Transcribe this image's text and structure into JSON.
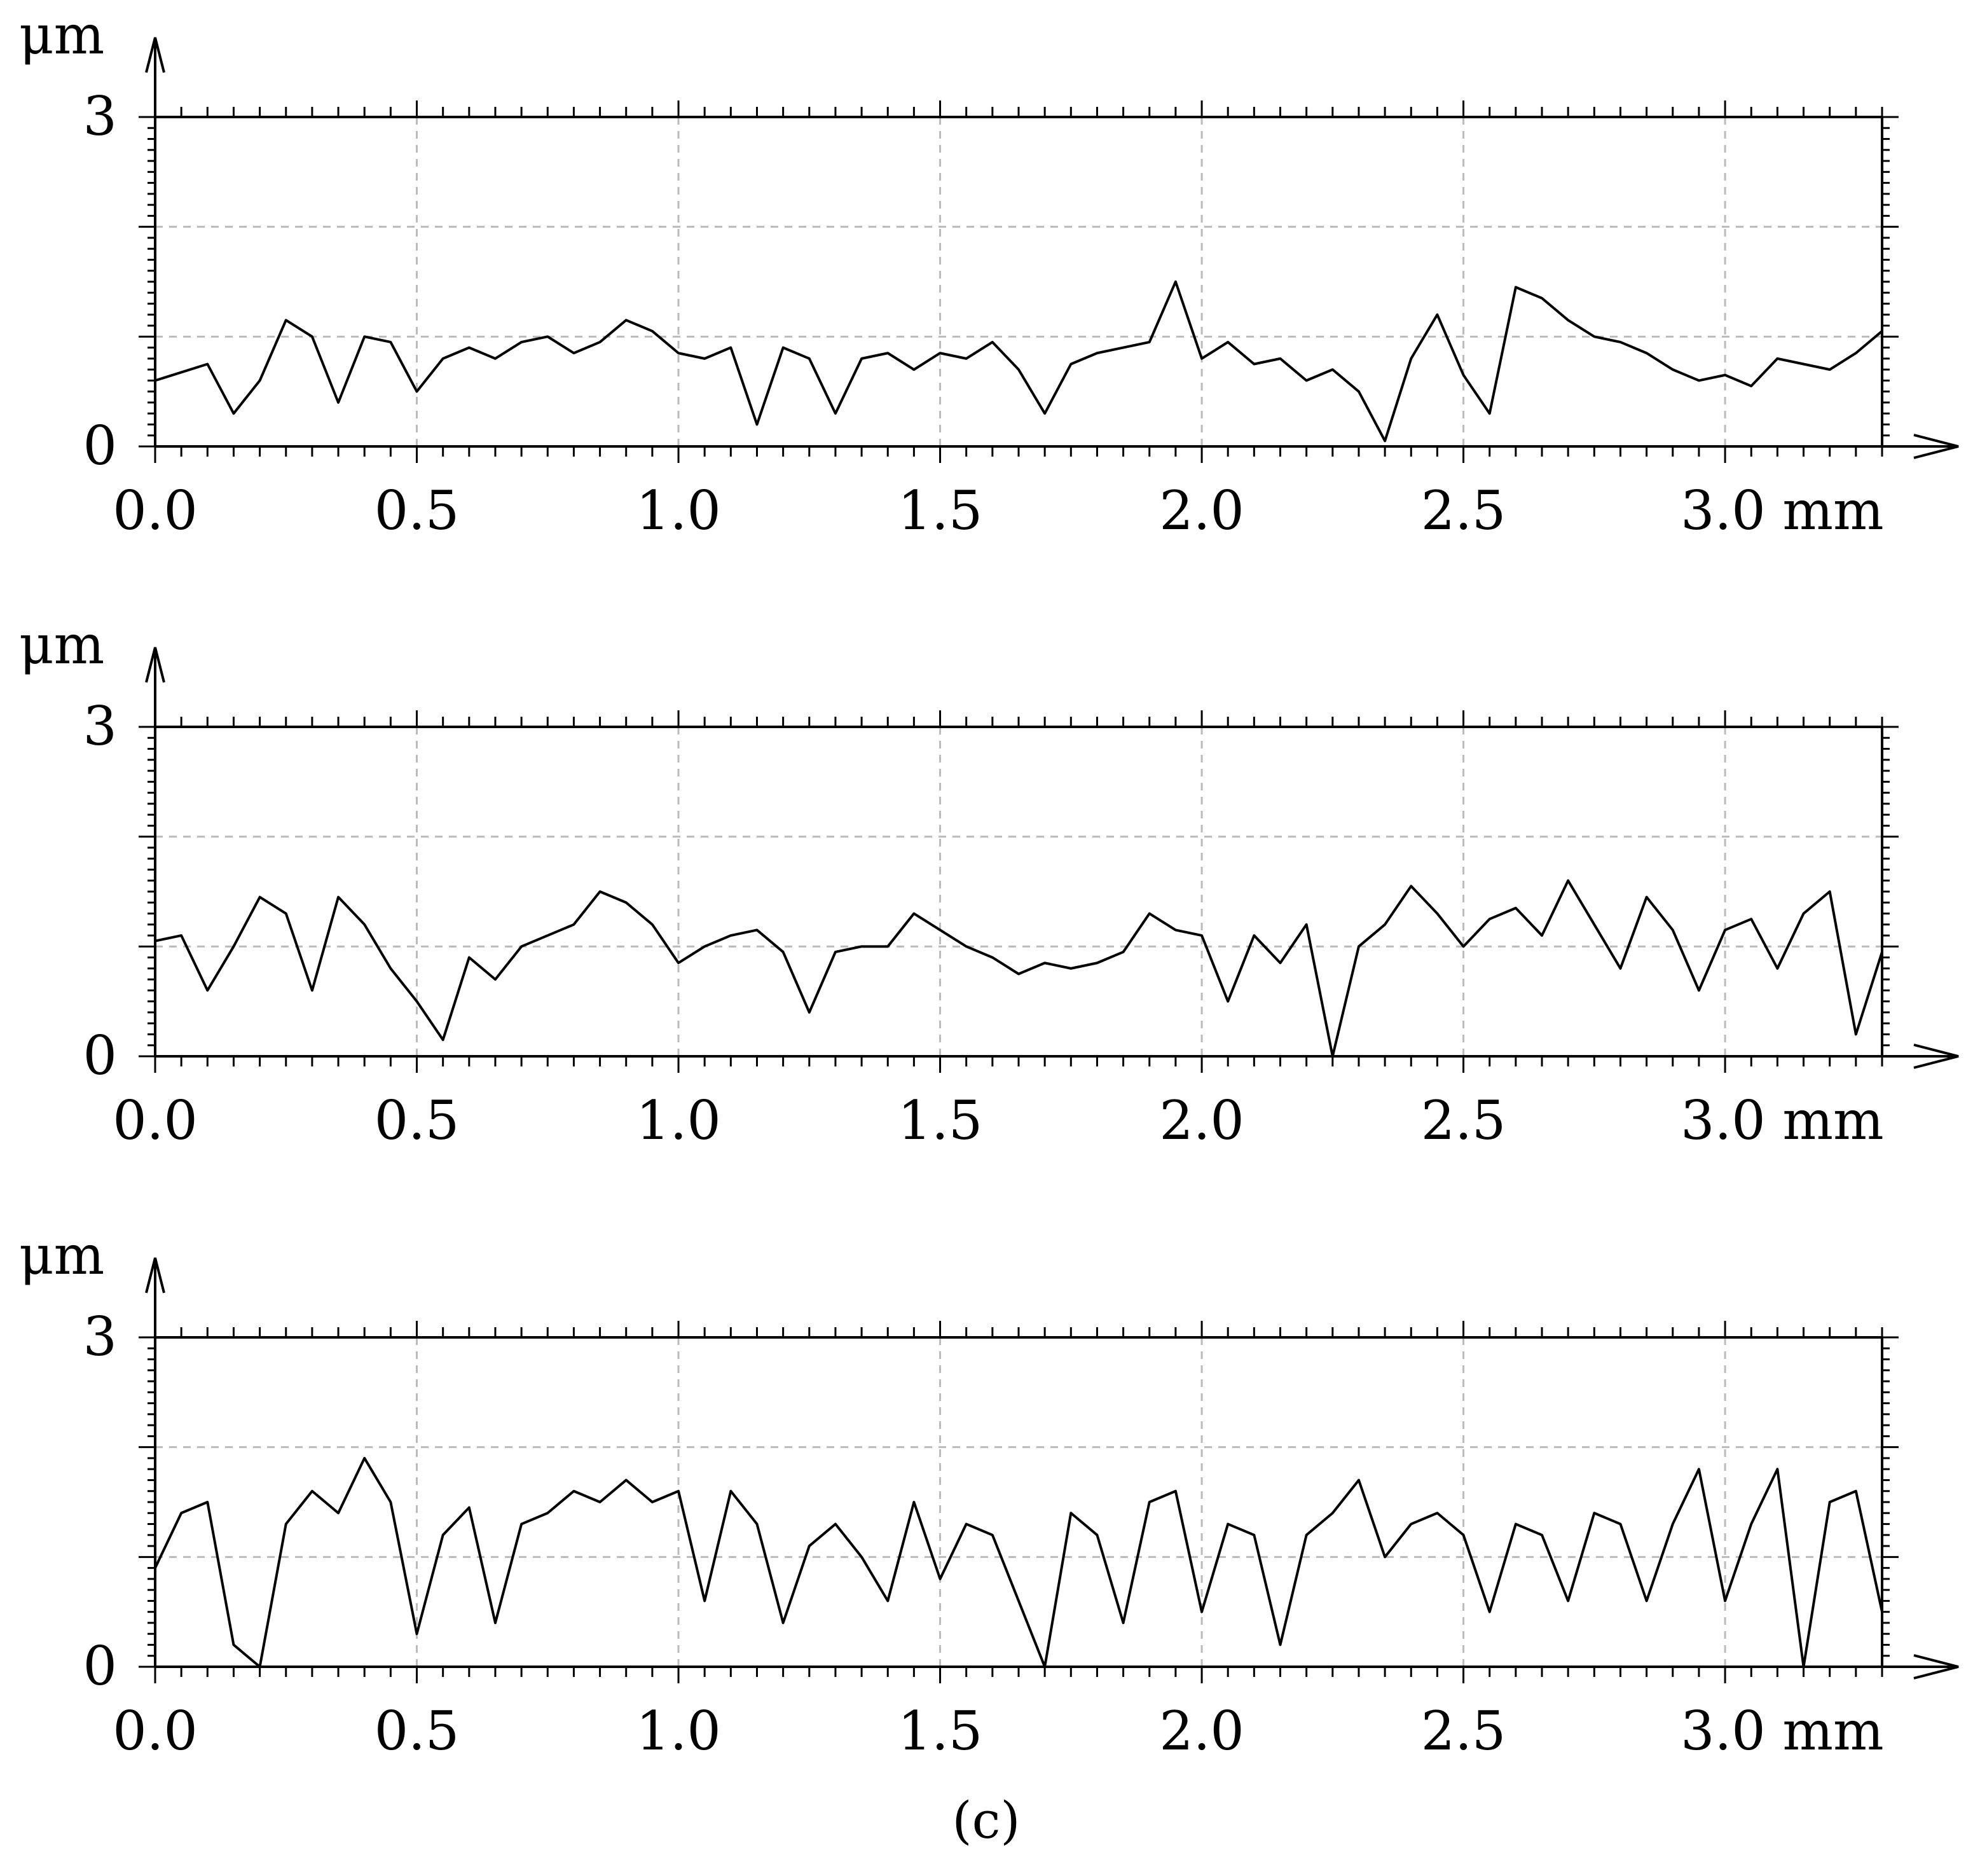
{
  "caption": "(c)",
  "chart_data": [
    {
      "type": "line",
      "ylabel": "μm",
      "xunit": "mm",
      "xlim": [
        0.0,
        3.3
      ],
      "ylim": [
        0,
        3
      ],
      "xticks": [
        "0.0",
        "0.5",
        "1.0",
        "1.5",
        "2.0",
        "2.5",
        "3.0"
      ],
      "yticks": [
        "0",
        "3"
      ],
      "grid": true,
      "series": [
        {
          "x": [
            0.0,
            0.1,
            0.15,
            0.2,
            0.25,
            0.3,
            0.35,
            0.4,
            0.45,
            0.5,
            0.55,
            0.6,
            0.65,
            0.7,
            0.75,
            0.8,
            0.85,
            0.9,
            0.95,
            1.0,
            1.05,
            1.1,
            1.15,
            1.2,
            1.25,
            1.3,
            1.35,
            1.4,
            1.45,
            1.5,
            1.55,
            1.6,
            1.65,
            1.7,
            1.75,
            1.8,
            1.85,
            1.9,
            1.95,
            2.0,
            2.05,
            2.1,
            2.15,
            2.2,
            2.25,
            2.3,
            2.35,
            2.4,
            2.45,
            2.5,
            2.55,
            2.6,
            2.65,
            2.7,
            2.75,
            2.8,
            2.85,
            2.9,
            2.95,
            3.0,
            3.05,
            3.1,
            3.15,
            3.2,
            3.25,
            3.3
          ],
          "y": [
            0.6,
            0.75,
            0.3,
            0.6,
            1.15,
            1.0,
            0.4,
            1.0,
            0.95,
            0.5,
            0.8,
            0.9,
            0.8,
            0.95,
            1.0,
            0.85,
            0.95,
            1.15,
            1.05,
            0.85,
            0.8,
            0.9,
            0.2,
            0.9,
            0.8,
            0.3,
            0.8,
            0.85,
            0.7,
            0.85,
            0.8,
            0.95,
            0.7,
            0.3,
            0.75,
            0.85,
            0.9,
            0.95,
            1.5,
            0.8,
            0.95,
            0.75,
            0.8,
            0.6,
            0.7,
            0.5,
            0.05,
            0.8,
            1.2,
            0.65,
            0.3,
            1.45,
            1.35,
            1.15,
            1.0,
            0.95,
            0.85,
            0.7,
            0.6,
            0.65,
            0.55,
            0.8,
            0.75,
            0.7,
            0.85,
            1.05
          ]
        }
      ]
    },
    {
      "type": "line",
      "ylabel": "μm",
      "xunit": "mm",
      "xlim": [
        0.0,
        3.3
      ],
      "ylim": [
        0,
        3
      ],
      "xticks": [
        "0.0",
        "0.5",
        "1.0",
        "1.5",
        "2.0",
        "2.5",
        "3.0"
      ],
      "yticks": [
        "0",
        "3"
      ],
      "grid": true,
      "series": [
        {
          "x": [
            0.0,
            0.05,
            0.1,
            0.15,
            0.2,
            0.25,
            0.3,
            0.35,
            0.4,
            0.45,
            0.5,
            0.55,
            0.6,
            0.65,
            0.7,
            0.75,
            0.8,
            0.85,
            0.9,
            0.95,
            1.0,
            1.05,
            1.1,
            1.15,
            1.2,
            1.25,
            1.3,
            1.35,
            1.4,
            1.45,
            1.5,
            1.55,
            1.6,
            1.65,
            1.7,
            1.75,
            1.8,
            1.85,
            1.9,
            1.95,
            2.0,
            2.05,
            2.1,
            2.15,
            2.2,
            2.25,
            2.3,
            2.35,
            2.4,
            2.45,
            2.5,
            2.55,
            2.6,
            2.65,
            2.7,
            2.75,
            2.8,
            2.85,
            2.9,
            2.95,
            3.0,
            3.05,
            3.1,
            3.15,
            3.2,
            3.25,
            3.3
          ],
          "y": [
            1.05,
            1.1,
            0.6,
            1.0,
            1.45,
            1.3,
            0.6,
            1.45,
            1.2,
            0.8,
            0.5,
            0.15,
            0.9,
            0.7,
            1.0,
            1.1,
            1.2,
            1.5,
            1.4,
            1.2,
            0.85,
            1.0,
            1.1,
            1.15,
            0.95,
            0.4,
            0.95,
            1.0,
            1.0,
            1.3,
            1.15,
            1.0,
            0.9,
            0.75,
            0.85,
            0.8,
            0.85,
            0.95,
            1.3,
            1.15,
            1.1,
            0.5,
            1.1,
            0.85,
            1.2,
            0.0,
            1.0,
            1.2,
            1.55,
            1.3,
            1.0,
            1.25,
            1.35,
            1.1,
            1.6,
            1.2,
            0.8,
            1.45,
            1.15,
            0.6,
            1.15,
            1.25,
            0.8,
            1.3,
            1.5,
            0.2,
            0.95
          ]
        }
      ]
    },
    {
      "type": "line",
      "ylabel": "μm",
      "xunit": "mm",
      "xlim": [
        0.0,
        3.3
      ],
      "ylim": [
        0,
        3
      ],
      "xticks": [
        "0.0",
        "0.5",
        "1.0",
        "1.5",
        "2.0",
        "2.5",
        "3.0"
      ],
      "yticks": [
        "0",
        "3"
      ],
      "grid": true,
      "series": [
        {
          "x": [
            0.0,
            0.05,
            0.1,
            0.15,
            0.2,
            0.25,
            0.3,
            0.35,
            0.4,
            0.45,
            0.5,
            0.55,
            0.6,
            0.65,
            0.7,
            0.75,
            0.8,
            0.85,
            0.9,
            0.95,
            1.0,
            1.05,
            1.1,
            1.15,
            1.2,
            1.25,
            1.3,
            1.35,
            1.4,
            1.45,
            1.5,
            1.55,
            1.6,
            1.65,
            1.7,
            1.75,
            1.8,
            1.85,
            1.9,
            1.95,
            2.0,
            2.05,
            2.1,
            2.15,
            2.2,
            2.25,
            2.3,
            2.35,
            2.4,
            2.45,
            2.5,
            2.55,
            2.6,
            2.65,
            2.7,
            2.75,
            2.8,
            2.85,
            2.9,
            2.95,
            3.0,
            3.05,
            3.1,
            3.15,
            3.2,
            3.25,
            3.3
          ],
          "y": [
            0.9,
            1.4,
            1.5,
            0.2,
            0.0,
            1.3,
            1.6,
            1.4,
            1.9,
            1.5,
            0.3,
            1.2,
            1.45,
            0.4,
            1.3,
            1.4,
            1.6,
            1.5,
            1.7,
            1.5,
            1.6,
            0.6,
            1.6,
            1.3,
            0.4,
            1.1,
            1.3,
            1.0,
            0.6,
            1.5,
            0.8,
            1.3,
            1.2,
            0.6,
            0.0,
            1.4,
            1.2,
            0.4,
            1.5,
            1.6,
            0.5,
            1.3,
            1.2,
            0.2,
            1.2,
            1.4,
            1.7,
            1.0,
            1.3,
            1.4,
            1.2,
            0.5,
            1.3,
            1.2,
            0.6,
            1.4,
            1.3,
            0.6,
            1.3,
            1.8,
            0.6,
            1.3,
            1.8,
            0.0,
            1.5,
            1.6,
            0.5
          ]
        }
      ]
    }
  ]
}
